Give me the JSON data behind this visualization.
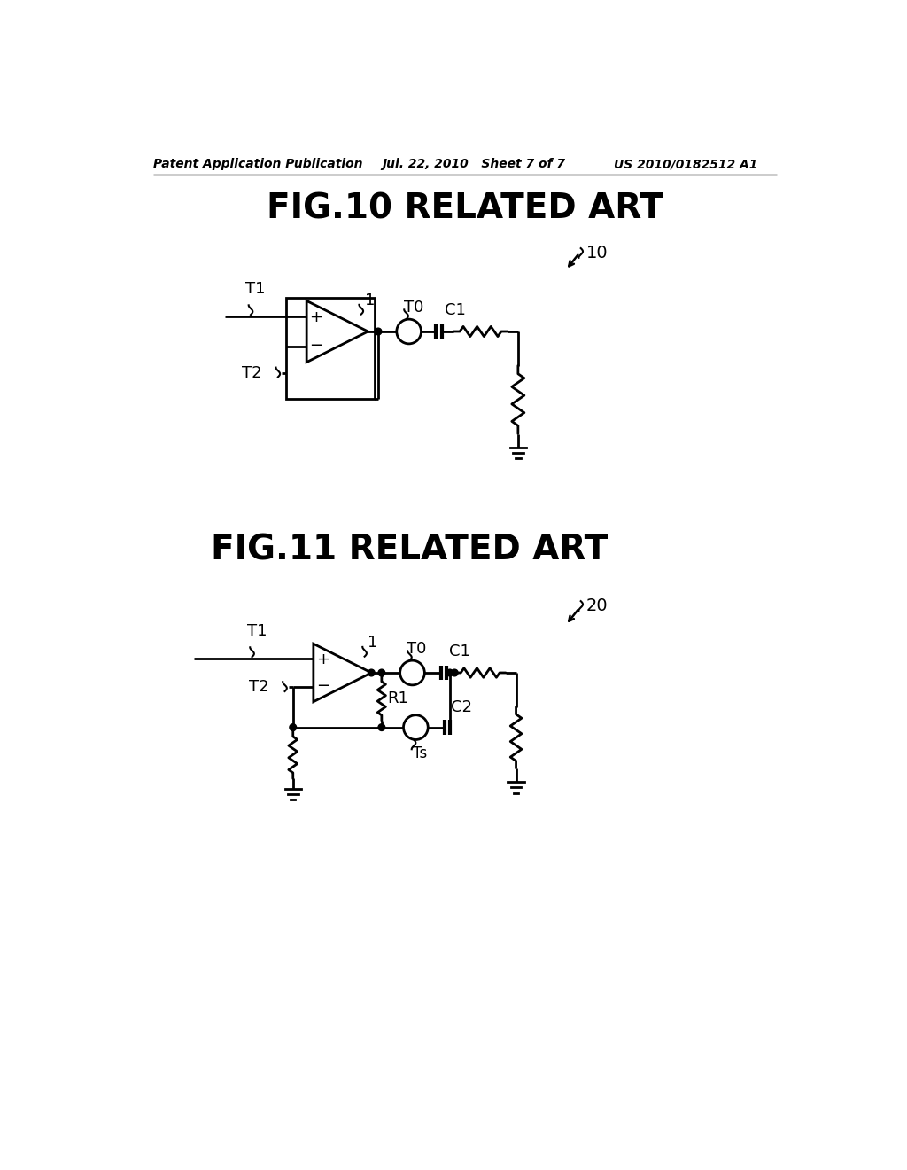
{
  "bg_color": "#ffffff",
  "line_color": "#000000",
  "header_left": "Patent Application Publication",
  "header_mid": "Jul. 22, 2010   Sheet 7 of 7",
  "header_right": "US 2010/0182512 A1",
  "fig10_title": "FIG.10 RELATED ART",
  "fig11_title": "FIG.11 RELATED ART",
  "label_10": "10",
  "label_20": "20",
  "label_1_fig10": "1",
  "label_1_fig11": "1",
  "label_T1_fig10": "T1",
  "label_T2_fig10": "T2",
  "label_T0_fig10": "T0",
  "label_C1_fig10": "C1",
  "label_T1_fig11": "T1",
  "label_T2_fig11": "T2",
  "label_T0_fig11": "T0",
  "label_C1_fig11": "C1",
  "label_R1_fig11": "R1",
  "label_C2_fig11": "C2",
  "label_Ts_fig11": "Ts"
}
